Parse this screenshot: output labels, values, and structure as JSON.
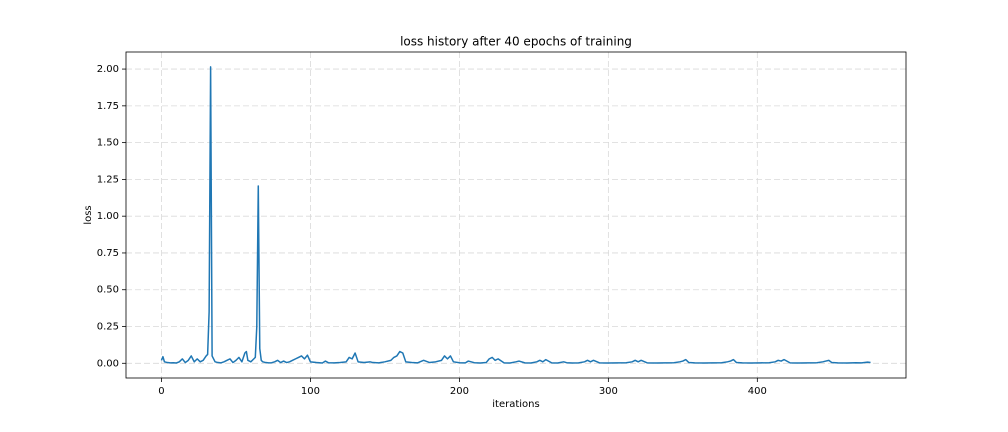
{
  "chart_data": {
    "type": "line",
    "title": "loss history after 40 epochs of training",
    "xlabel": "iterations",
    "ylabel": "loss",
    "color": "#1f77b4",
    "grid": true,
    "xlim": [
      -23.8,
      499.8
    ],
    "ylim": [
      -0.1,
      2.116
    ],
    "xticks": [
      0,
      100,
      200,
      300,
      400
    ],
    "yticks": [
      {
        "value": 0,
        "label": "0.00"
      },
      {
        "value": 0.25,
        "label": "0.25"
      },
      {
        "value": 0.5,
        "label": "0.50"
      },
      {
        "value": 0.75,
        "label": "0.75"
      },
      {
        "value": 1,
        "label": "1.00"
      },
      {
        "value": 1.25,
        "label": "1.25"
      },
      {
        "value": 1.5,
        "label": "1.50"
      },
      {
        "value": 1.75,
        "label": "1.75"
      },
      {
        "value": 2,
        "label": "2.00"
      }
    ],
    "x": [
      0,
      1,
      2,
      4,
      6,
      8,
      10,
      12,
      14,
      16,
      18,
      20,
      22,
      24,
      26,
      28,
      30,
      31,
      32,
      33,
      34,
      36,
      38,
      40,
      42,
      44,
      46,
      48,
      50,
      52,
      54,
      56,
      57,
      58,
      60,
      62,
      63,
      64,
      65,
      66,
      67,
      68,
      70,
      72,
      74,
      76,
      78,
      80,
      82,
      84,
      86,
      88,
      90,
      92,
      94,
      96,
      98,
      100,
      104,
      108,
      110,
      112,
      116,
      120,
      124,
      126,
      128,
      130,
      132,
      136,
      140,
      142,
      146,
      150,
      154,
      156,
      158,
      160,
      162,
      164,
      168,
      172,
      176,
      180,
      184,
      188,
      190,
      192,
      194,
      196,
      200,
      204,
      206,
      210,
      214,
      218,
      220,
      222,
      224,
      226,
      230,
      234,
      238,
      240,
      244,
      248,
      252,
      254,
      256,
      258,
      262,
      266,
      270,
      272,
      276,
      280,
      284,
      286,
      288,
      290,
      294,
      300,
      306,
      312,
      316,
      318,
      320,
      322,
      326,
      332,
      338,
      344,
      348,
      350,
      352,
      354,
      358,
      364,
      370,
      376,
      380,
      382,
      384,
      386,
      390,
      396,
      402,
      408,
      412,
      414,
      416,
      418,
      422,
      428,
      434,
      440,
      444,
      446,
      448,
      450,
      454,
      460,
      466,
      470,
      474,
      476
    ],
    "values": [
      0.02,
      0.045,
      0.01,
      0.005,
      0.003,
      0.004,
      0.002,
      0.01,
      0.03,
      0.005,
      0.02,
      0.05,
      0.01,
      0.03,
      0.01,
      0.02,
      0.05,
      0.06,
      0.35,
      2.015,
      0.05,
      0.01,
      0.005,
      0.003,
      0.01,
      0.02,
      0.03,
      0.005,
      0.02,
      0.04,
      0.01,
      0.07,
      0.08,
      0.02,
      0.01,
      0.03,
      0.04,
      0.25,
      1.205,
      0.1,
      0.02,
      0.01,
      0.005,
      0.003,
      0.004,
      0.01,
      0.02,
      0.005,
      0.015,
      0.005,
      0.01,
      0.02,
      0.03,
      0.04,
      0.05,
      0.03,
      0.055,
      0.01,
      0.005,
      0.002,
      0.015,
      0.004,
      0.003,
      0.005,
      0.01,
      0.04,
      0.03,
      0.07,
      0.01,
      0.005,
      0.01,
      0.005,
      0.003,
      0.01,
      0.02,
      0.04,
      0.05,
      0.08,
      0.07,
      0.01,
      0.005,
      0.003,
      0.02,
      0.005,
      0.01,
      0.02,
      0.05,
      0.03,
      0.05,
      0.01,
      0.004,
      0.003,
      0.015,
      0.004,
      0.002,
      0.005,
      0.03,
      0.04,
      0.02,
      0.03,
      0.003,
      0.002,
      0.01,
      0.015,
      0.003,
      0.002,
      0.01,
      0.02,
      0.01,
      0.025,
      0.003,
      0.002,
      0.01,
      0.004,
      0.002,
      0.003,
      0.01,
      0.02,
      0.01,
      0.02,
      0.003,
      0.002,
      0.003,
      0.004,
      0.01,
      0.02,
      0.01,
      0.02,
      0.003,
      0.002,
      0.003,
      0.004,
      0.01,
      0.015,
      0.025,
      0.005,
      0.003,
      0.002,
      0.003,
      0.004,
      0.01,
      0.015,
      0.025,
      0.005,
      0.003,
      0.002,
      0.003,
      0.004,
      0.01,
      0.02,
      0.015,
      0.025,
      0.003,
      0.002,
      0.003,
      0.004,
      0.01,
      0.015,
      0.02,
      0.005,
      0.003,
      0.002,
      0.004,
      0.003,
      0.008,
      0.005
    ]
  }
}
